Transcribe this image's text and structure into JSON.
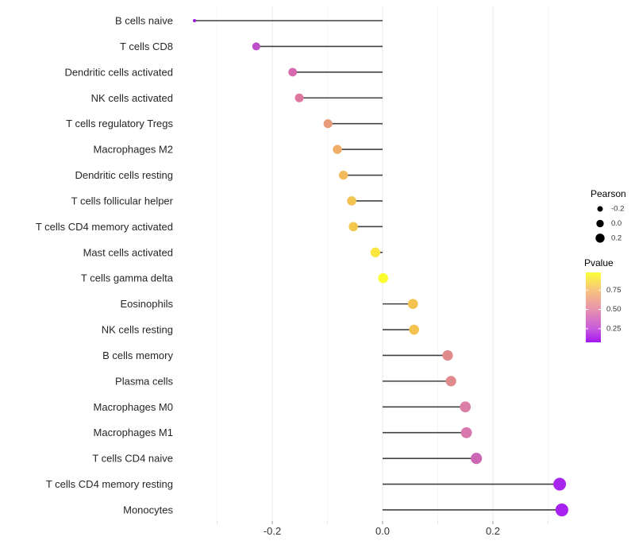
{
  "chart_data": {
    "type": "lollipop",
    "title": "",
    "xlabel": "",
    "ylabel": "",
    "xlim": [
      -0.37,
      0.36
    ],
    "baseline": 0.0,
    "x_major_ticks": [
      -0.2,
      0.0,
      0.2
    ],
    "x_major_tick_labels": [
      "-0.2",
      "0.0",
      "0.2"
    ],
    "x_minor_ticks": [
      -0.3,
      -0.1,
      0.1,
      0.3
    ],
    "grid": "vertical-only",
    "rows": [
      {
        "label": "B cells naive",
        "pearson": -0.341,
        "dot_color": "#9A1BE0",
        "dot_radius": 2.0
      },
      {
        "label": "T cells CD8",
        "pearson": -0.229,
        "dot_color": "#BC4EC8",
        "dot_radius": 5.0
      },
      {
        "label": "Dendritic cells activated",
        "pearson": -0.163,
        "dot_color": "#D668AE",
        "dot_radius": 5.4
      },
      {
        "label": "NK cells activated",
        "pearson": -0.151,
        "dot_color": "#E0779F",
        "dot_radius": 5.5
      },
      {
        "label": "T cells regulatory  Tregs",
        "pearson": -0.099,
        "dot_color": "#E89B79",
        "dot_radius": 5.6
      },
      {
        "label": "Macrophages M2",
        "pearson": -0.082,
        "dot_color": "#EFAE68",
        "dot_radius": 5.7
      },
      {
        "label": "Dendritic cells resting",
        "pearson": -0.071,
        "dot_color": "#F2BA59",
        "dot_radius": 5.7
      },
      {
        "label": "T cells follicular helper",
        "pearson": -0.056,
        "dot_color": "#F3C351",
        "dot_radius": 5.8
      },
      {
        "label": "T cells CD4 memory activated",
        "pearson": -0.053,
        "dot_color": "#F3C74D",
        "dot_radius": 5.8
      },
      {
        "label": "Mast cells activated",
        "pearson": -0.013,
        "dot_color": "#F8E53E",
        "dot_radius": 6.1
      },
      {
        "label": "T cells gamma delta",
        "pearson": 0.001,
        "dot_color": "#FBFB2D",
        "dot_radius": 6.3
      },
      {
        "label": "Eosinophils",
        "pearson": 0.055,
        "dot_color": "#F3C24F",
        "dot_radius": 6.3
      },
      {
        "label": "NK cells resting",
        "pearson": 0.057,
        "dot_color": "#F3C24F",
        "dot_radius": 6.3
      },
      {
        "label": "B cells memory",
        "pearson": 0.118,
        "dot_color": "#E08A8C",
        "dot_radius": 6.6
      },
      {
        "label": "Plasma cells",
        "pearson": 0.124,
        "dot_color": "#E18A8E",
        "dot_radius": 6.6
      },
      {
        "label": "Macrophages M0",
        "pearson": 0.15,
        "dot_color": "#DB7FA6",
        "dot_radius": 6.9
      },
      {
        "label": "Macrophages M1",
        "pearson": 0.152,
        "dot_color": "#D877AC",
        "dot_radius": 6.9
      },
      {
        "label": "T cells CD4 naive",
        "pearson": 0.17,
        "dot_color": "#CC67B4",
        "dot_radius": 7.1
      },
      {
        "label": "T cells CD4 memory resting",
        "pearson": 0.321,
        "dot_color": "#A726EE",
        "dot_radius": 8.0
      },
      {
        "label": "Monocytes",
        "pearson": 0.325,
        "dot_color": "#A722F0",
        "dot_radius": 8.1
      }
    ],
    "legend": {
      "size": {
        "title": "Pearson",
        "items": [
          {
            "label": "-0.2",
            "radius": 3.5
          },
          {
            "label": "0.0",
            "radius": 4.7
          },
          {
            "label": "0.2",
            "radius": 5.7
          }
        ],
        "dot_color": "#000000"
      },
      "color": {
        "title": "Pvalue",
        "ticks": [
          {
            "label": "0.75",
            "frac_from_bottom": 0.747
          },
          {
            "label": "0.50",
            "frac_from_bottom": 0.471
          },
          {
            "label": "0.25",
            "frac_from_bottom": 0.195
          }
        ],
        "gradient_stops": [
          {
            "offset": 0.0,
            "color": "#A316F0"
          },
          {
            "offset": 0.2,
            "color": "#C95CDD"
          },
          {
            "offset": 0.47,
            "color": "#E891AE"
          },
          {
            "offset": 0.75,
            "color": "#F8C47C"
          },
          {
            "offset": 1.0,
            "color": "#FCFE3A"
          }
        ]
      }
    },
    "style_colors": {
      "stem": "#404040",
      "grid_major": "#ECECEC",
      "grid_minor": "#F5F5F5",
      "tick_major": "#999999",
      "tick_minor": "#E3E3E3",
      "axis_text": "#333333",
      "category_text": "#262626",
      "legend_title_text": "#000000",
      "legend_label_text": "#333333",
      "background": "#FFFFFF"
    }
  }
}
